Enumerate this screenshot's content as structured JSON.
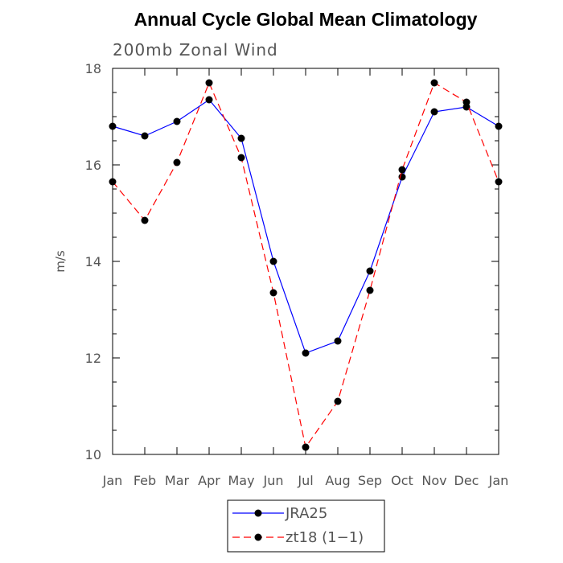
{
  "chart_data": {
    "type": "line",
    "title": "Annual Cycle Global Mean Climatology",
    "subtitle": "200mb Zonal Wind",
    "xlabel": "",
    "ylabel": "m/s",
    "categories": [
      "Jan",
      "Feb",
      "Mar",
      "Apr",
      "May",
      "Jun",
      "Jul",
      "Aug",
      "Sep",
      "Oct",
      "Nov",
      "Dec",
      "Jan"
    ],
    "ylim": [
      10,
      18
    ],
    "yticks": [
      10,
      12,
      14,
      16,
      18
    ],
    "grid": false,
    "legend_position": "bottom-center",
    "series": [
      {
        "name": "JRA25",
        "color": "#0000ff",
        "line_style": "solid",
        "marker": "filled-circle",
        "values": [
          16.8,
          16.6,
          16.9,
          17.35,
          16.55,
          14.0,
          12.1,
          12.35,
          13.8,
          15.75,
          17.1,
          17.2,
          16.8
        ]
      },
      {
        "name": "zt18 (1−1)",
        "color": "#ff0000",
        "line_style": "dashed",
        "marker": "filled-circle",
        "values": [
          15.65,
          14.85,
          16.05,
          17.7,
          16.15,
          13.35,
          10.15,
          11.1,
          13.4,
          15.9,
          17.7,
          17.3,
          15.65
        ]
      }
    ]
  }
}
